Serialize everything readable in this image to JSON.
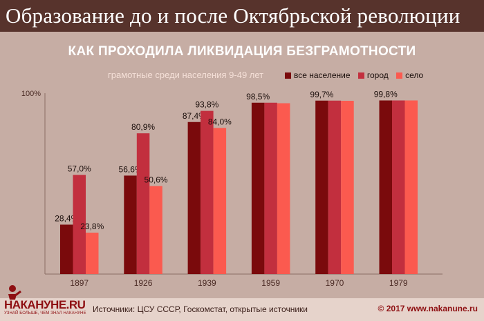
{
  "header": {
    "title": "Образование до и после Октябрьской революции"
  },
  "chart_data": {
    "type": "bar",
    "title": "КАК ПРОХОДИЛА ЛИКВИДАЦИЯ БЕЗГРАМОТНОСТИ",
    "subtitle": "грамотные среди населения 9-49 лет",
    "categories": [
      "1897",
      "1926",
      "1939",
      "1959",
      "1970",
      "1979"
    ],
    "series": [
      {
        "name": "все население",
        "color": "#7a0a0c",
        "values": [
          28.4,
          56.6,
          87.4,
          98.5,
          99.7,
          99.8
        ],
        "labels": [
          "28,4%",
          "56,6%",
          "87,4%",
          "98,5%",
          "99,7%",
          "99,8%"
        ]
      },
      {
        "name": "город",
        "color": "#c22f3e",
        "values": [
          57.0,
          80.9,
          93.8,
          98.5,
          99.7,
          99.8
        ],
        "labels": [
          "57,0%",
          "80,9%",
          "93,8%",
          "",
          "",
          ""
        ]
      },
      {
        "name": "село",
        "color": "#fb5a4f",
        "values": [
          23.8,
          50.6,
          84.0,
          98.2,
          99.6,
          99.8
        ],
        "labels": [
          "23,8%",
          "50,6%",
          "84,0%",
          "",
          "",
          ""
        ]
      }
    ],
    "ylim": [
      0,
      100
    ],
    "y_tick_label": "100%",
    "grid": false,
    "legend_position": "top-right"
  },
  "footer": {
    "sources": "Источники: ЦСУ СССР, Госкомстат, открытые источники",
    "copyright": "© 2017 www.nakanune.ru"
  },
  "logo": {
    "text": "НАКАНУНЕ.RU",
    "tagline": "УЗНАЙ БОЛЬШЕ, ЧЕМ ЗНАЛ НАКАНУНЕ"
  }
}
